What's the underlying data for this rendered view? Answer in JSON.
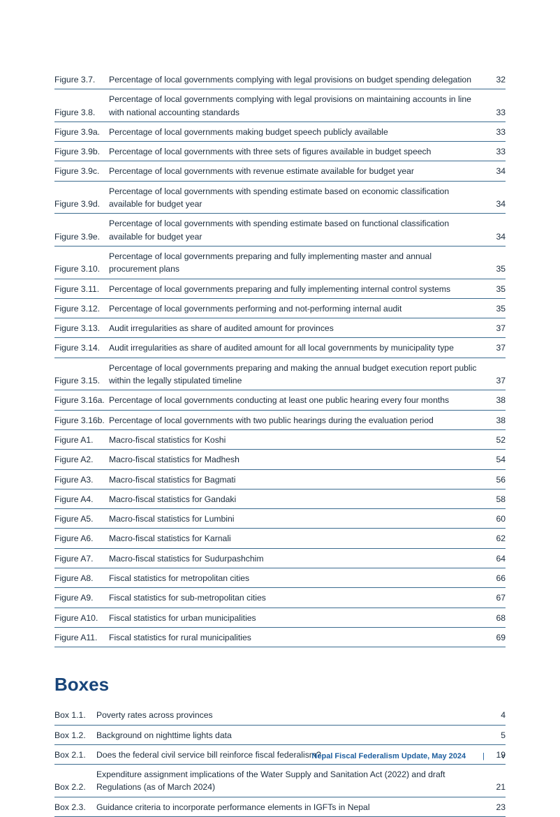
{
  "figures": [
    {
      "label": "Figure 3.7.",
      "title": "Percentage of local governments complying with legal provisions on budget spending delegation",
      "page": "32"
    },
    {
      "label": "Figure 3.8.",
      "title": "Percentage of local governments complying with legal provisions on maintaining accounts in line with national accounting standards",
      "page": "33"
    },
    {
      "label": "Figure 3.9a.",
      "title": "Percentage of local governments making budget speech publicly available",
      "page": "33"
    },
    {
      "label": "Figure 3.9b.",
      "title": "Percentage of local governments with three sets of figures available in budget speech",
      "page": "33"
    },
    {
      "label": "Figure 3.9c.",
      "title": "Percentage of local governments with revenue estimate available for budget year",
      "page": "34"
    },
    {
      "label": "Figure 3.9d.",
      "title": "Percentage of local governments with spending estimate based on economic classification available for budget year",
      "page": "34"
    },
    {
      "label": "Figure 3.9e.",
      "title": "Percentage of local governments with spending estimate based on functional classification available for budget year",
      "page": "34"
    },
    {
      "label": "Figure 3.10.",
      "title": "Percentage of local governments preparing and fully implementing master and annual procurement plans",
      "page": "35"
    },
    {
      "label": "Figure 3.11.",
      "title": "Percentage of local governments preparing and fully implementing internal control systems",
      "page": "35"
    },
    {
      "label": "Figure 3.12.",
      "title": "Percentage of local governments performing and not-performing internal audit",
      "page": "35"
    },
    {
      "label": "Figure 3.13.",
      "title": "Audit irregularities as share of audited amount for provinces",
      "page": "37"
    },
    {
      "label": "Figure 3.14.",
      "title": "Audit irregularities as share of audited amount for all local governments by municipality type",
      "page": "37"
    },
    {
      "label": "Figure 3.15.",
      "title": "Percentage of local governments preparing and making the annual budget execution report public within the legally stipulated timeline",
      "page": "37"
    },
    {
      "label": "Figure 3.16a.",
      "title": "Percentage of local governments conducting at least one public hearing every four months",
      "page": "38"
    },
    {
      "label": "Figure 3.16b.",
      "title": "Percentage of local governments with two public hearings during the evaluation period",
      "page": "38"
    },
    {
      "label": "Figure A1.",
      "title": "Macro-fiscal statistics for Koshi",
      "page": "52"
    },
    {
      "label": "Figure A2.",
      "title": "Macro-fiscal statistics for Madhesh",
      "page": "54"
    },
    {
      "label": "Figure A3.",
      "title": "Macro-fiscal statistics for Bagmati",
      "page": "56"
    },
    {
      "label": "Figure A4.",
      "title": "Macro-fiscal statistics for Gandaki",
      "page": "58"
    },
    {
      "label": "Figure A5.",
      "title": "Macro-fiscal statistics for Lumbini",
      "page": "60"
    },
    {
      "label": "Figure A6.",
      "title": "Macro-fiscal statistics for Karnali",
      "page": "62"
    },
    {
      "label": "Figure A7.",
      "title": "Macro-fiscal statistics for Sudurpashchim",
      "page": "64"
    },
    {
      "label": "Figure A8.",
      "title": "Fiscal statistics for metropolitan cities",
      "page": "66"
    },
    {
      "label": "Figure A9.",
      "title": "Fiscal statistics for sub-metropolitan cities",
      "page": "67"
    },
    {
      "label": "Figure A10.",
      "title": "Fiscal statistics for urban municipalities",
      "page": "68"
    },
    {
      "label": "Figure A11.",
      "title": "Fiscal statistics for rural municipalities",
      "page": "69"
    }
  ],
  "boxes_heading": "Boxes",
  "boxes": [
    {
      "label": "Box 1.1.",
      "title": "Poverty rates across provinces",
      "page": "4"
    },
    {
      "label": "Box 1.2.",
      "title": "Background on nighttime lights data",
      "page": "5"
    },
    {
      "label": "Box 2.1.",
      "title": "Does the federal civil service bill reinforce fiscal federalism?",
      "page": "19"
    },
    {
      "label": "Box 2.2.",
      "title": "Expenditure assignment implications of the Water Supply and Sanitation Act (2022) and draft Regulations (as of March 2024)",
      "page": "21"
    },
    {
      "label": "Box 2.3.",
      "title": "Guidance criteria to incorporate performance elements in IGFTs in Nepal",
      "page": "23"
    }
  ],
  "footer": {
    "title": "Nepal Fiscal Federalism Update, May 2024",
    "sep": "|",
    "pagenum": "v"
  },
  "styling": {
    "accent_color": "#18457a",
    "rule_color": "#3b6b8f",
    "text_color": "#1a2b3c",
    "footer_color": "#1d5e9e",
    "body_fontsize": 12.2,
    "heading_fontsize": 26
  }
}
